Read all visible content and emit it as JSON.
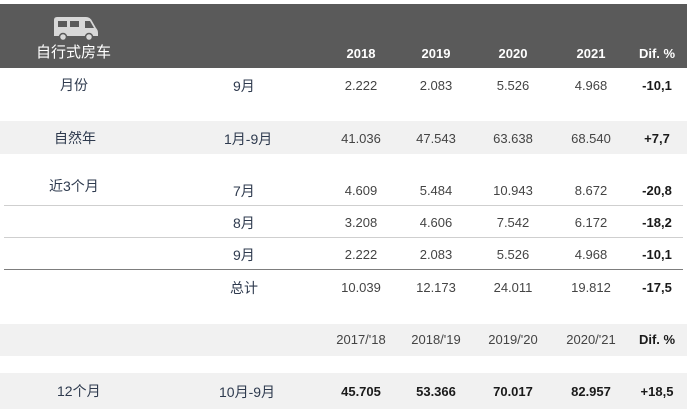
{
  "header": {
    "title": "自行式房车",
    "icon": "motorhome-icon",
    "years": [
      "2018",
      "2019",
      "2020",
      "2021"
    ],
    "dif_label": "Dif. %"
  },
  "rows": {
    "month": {
      "label": "月份",
      "period": "9月",
      "values": [
        "2.222",
        "2.083",
        "5.526",
        "4.968"
      ],
      "dif": "-10,1"
    },
    "ytd": {
      "label": "自然年",
      "period": "1月-9月",
      "values": [
        "41.036",
        "47.543",
        "63.638",
        "68.540"
      ],
      "dif": "+7,7"
    },
    "last3": {
      "label": "近3个月",
      "m1": {
        "period": "7月",
        "values": [
          "4.609",
          "5.484",
          "10.943",
          "8.672"
        ],
        "dif": "-20,8"
      },
      "m2": {
        "period": "8月",
        "values": [
          "3.208",
          "4.606",
          "7.542",
          "6.172"
        ],
        "dif": "-18,2"
      },
      "m3": {
        "period": "9月",
        "values": [
          "2.222",
          "2.083",
          "5.526",
          "4.968"
        ],
        "dif": "-10,1"
      },
      "total": {
        "period": "总计",
        "values": [
          "10.039",
          "12.173",
          "24.011",
          "19.812"
        ],
        "dif": "-17,5"
      }
    },
    "seasons": {
      "headers": [
        "2017/'18",
        "2018/'19",
        "2019/'20",
        "2020/'21"
      ],
      "dif_label": "Dif. %"
    },
    "twelve": {
      "label": "12个月",
      "period": "10月-9月",
      "values": [
        "45.705",
        "53.366",
        "70.017",
        "82.957"
      ],
      "dif": "+18,5"
    }
  },
  "colors": {
    "header_bg": "#5a5a5a",
    "band_bg": "#f1f1f1",
    "label_color": "#2e3a4e"
  }
}
